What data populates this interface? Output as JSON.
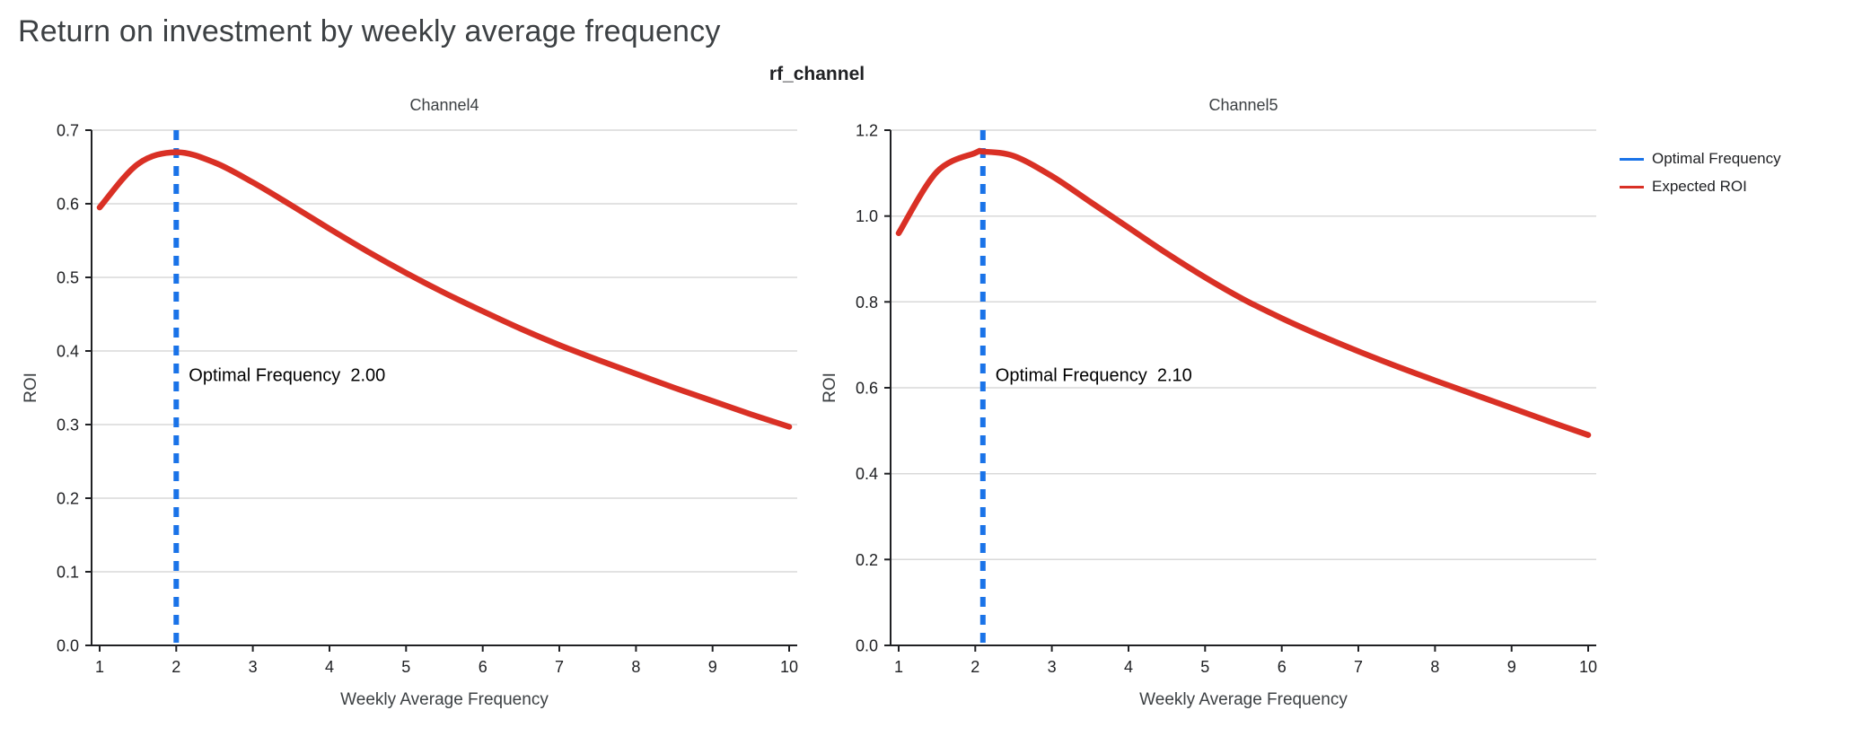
{
  "page": {
    "title": "Return on investment by weekly average frequency",
    "subtitle": "rf_channel"
  },
  "legend": {
    "position": "top-right",
    "items": [
      {
        "label": "Optimal Frequency",
        "color": "#1a73e8"
      },
      {
        "label": "Expected ROI",
        "color": "#d93025"
      }
    ]
  },
  "chart_data": [
    {
      "type": "line",
      "title": "Channel4",
      "xlabel": "Weekly Average Frequency",
      "ylabel": "ROI",
      "xlim": [
        1,
        10
      ],
      "ylim": [
        0.0,
        0.7
      ],
      "xticks": [
        1,
        2,
        3,
        4,
        5,
        6,
        7,
        8,
        9,
        10
      ],
      "yticks": [
        0.0,
        0.1,
        0.2,
        0.3,
        0.4,
        0.5,
        0.6,
        0.7
      ],
      "grid": "horizontal",
      "optimal_frequency": 2.0,
      "annotation": "Optimal Frequency  2.00",
      "vline": {
        "name": "Optimal Frequency",
        "x": 2.0,
        "color": "#1a73e8",
        "style": "dashed"
      },
      "series": [
        {
          "name": "Expected ROI",
          "color": "#d93025",
          "x": [
            1,
            1.5,
            2,
            2.5,
            3,
            3.5,
            4,
            4.5,
            5,
            5.5,
            6,
            6.5,
            7,
            7.5,
            8,
            8.5,
            9,
            9.5,
            10
          ],
          "y": [
            0.595,
            0.654,
            0.67,
            0.656,
            0.629,
            0.598,
            0.566,
            0.535,
            0.506,
            0.479,
            0.454,
            0.43,
            0.408,
            0.388,
            0.369,
            0.35,
            0.332,
            0.314,
            0.297
          ]
        }
      ]
    },
    {
      "type": "line",
      "title": "Channel5",
      "xlabel": "Weekly Average Frequency",
      "ylabel": "ROI",
      "xlim": [
        1,
        10
      ],
      "ylim": [
        0.0,
        1.2
      ],
      "xticks": [
        1,
        2,
        3,
        4,
        5,
        6,
        7,
        8,
        9,
        10
      ],
      "yticks": [
        0.0,
        0.2,
        0.4,
        0.6,
        0.8,
        1.0,
        1.2
      ],
      "grid": "horizontal",
      "optimal_frequency": 2.1,
      "annotation": "Optimal Frequency  2.10",
      "vline": {
        "name": "Optimal Frequency",
        "x": 2.1,
        "color": "#1a73e8",
        "style": "dashed"
      },
      "series": [
        {
          "name": "Expected ROI",
          "color": "#d93025",
          "x": [
            1,
            1.5,
            2,
            2.1,
            2.5,
            3,
            3.5,
            4,
            4.5,
            5,
            5.5,
            6,
            6.5,
            7,
            7.5,
            8,
            8.5,
            9,
            9.5,
            10
          ],
          "y": [
            0.96,
            1.103,
            1.147,
            1.15,
            1.14,
            1.093,
            1.033,
            0.973,
            0.913,
            0.857,
            0.806,
            0.762,
            0.722,
            0.685,
            0.65,
            0.617,
            0.585,
            0.553,
            0.521,
            0.49
          ]
        }
      ]
    }
  ]
}
